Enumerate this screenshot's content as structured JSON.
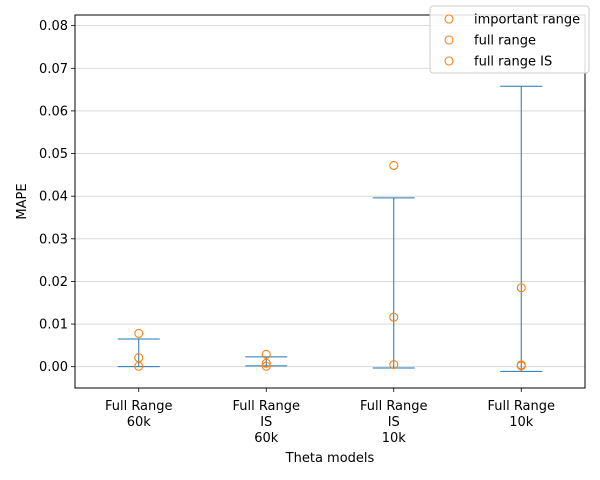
{
  "chart_data": {
    "type": "scatter",
    "xlabel": "Theta models",
    "ylabel": "MAPE",
    "categories": [
      [
        "Full Range",
        "60k"
      ],
      [
        "Full Range",
        "IS",
        "60k"
      ],
      [
        "Full Range",
        "IS",
        "10k"
      ],
      [
        "Full Range",
        "10k"
      ]
    ],
    "ylim": [
      -0.005,
      0.0825
    ],
    "yticks": [
      0.0,
      0.01,
      0.02,
      0.03,
      0.04,
      0.05,
      0.06,
      0.07,
      0.08
    ],
    "ytick_labels": [
      "0.00",
      "0.01",
      "0.02",
      "0.03",
      "0.04",
      "0.05",
      "0.06",
      "0.07",
      "0.08"
    ],
    "grid": "horizontal",
    "legend_position": "top-right",
    "error_bars": [
      {
        "category": 0,
        "low": 0.0,
        "high": 0.0065
      },
      {
        "category": 1,
        "low": 0.0002,
        "high": 0.0023
      },
      {
        "category": 2,
        "low": -0.0003,
        "high": 0.0396
      },
      {
        "category": 3,
        "low": -0.0011,
        "high": 0.0658
      }
    ],
    "series": [
      {
        "name": "important range",
        "values": [
          0.0078,
          0.0029,
          0.0472,
          0.0185
        ]
      },
      {
        "name": "full range",
        "values": [
          0.0021,
          0.0008,
          0.0116,
          0.0004
        ]
      },
      {
        "name": "full range IS",
        "values": [
          0.0001,
          0.0001,
          0.0005,
          0.0002
        ]
      }
    ],
    "colors": {
      "bar": "#1f77b4",
      "marker": "#ff7f0e",
      "grid": "#d3d3d3",
      "axis": "#000000"
    }
  }
}
